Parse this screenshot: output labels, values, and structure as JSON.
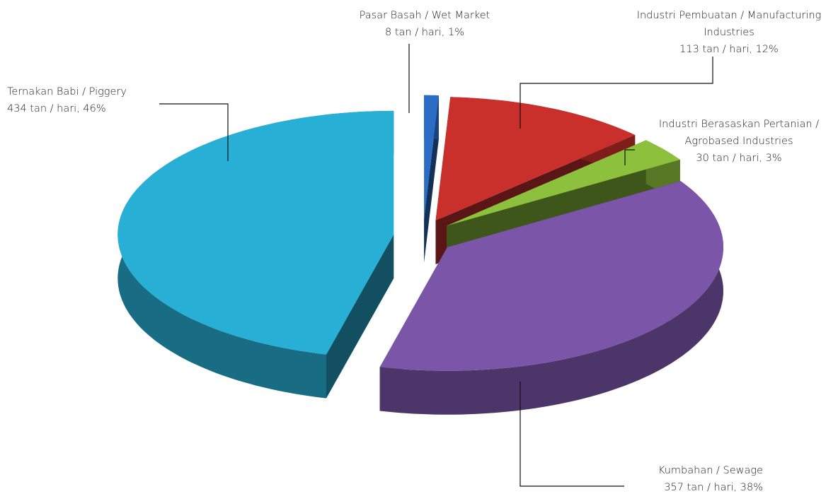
{
  "chart_data": {
    "type": "pie3d",
    "categories": [
      "Pasar Basah / Wet Market",
      "Industri Pembuatan / Manufacturing Industries",
      "Industri Berasaskan Pertanian / Agrobased Industries",
      "Kumbahan / Sewage",
      "Ternakan Babi / Piggery"
    ],
    "values": [
      8,
      113,
      30,
      357,
      434
    ],
    "value_labels": [
      "8 tan / hari, 1%",
      "113 tan / hari, 12%",
      "30 tan / hari, 3%",
      "357 tan / hari, 38%",
      "434 tan / hari, 46%"
    ],
    "colors": [
      "#2b6cc4",
      "#c9302c",
      "#8dc03c",
      "#7a55a8",
      "#27afd6"
    ]
  }
}
